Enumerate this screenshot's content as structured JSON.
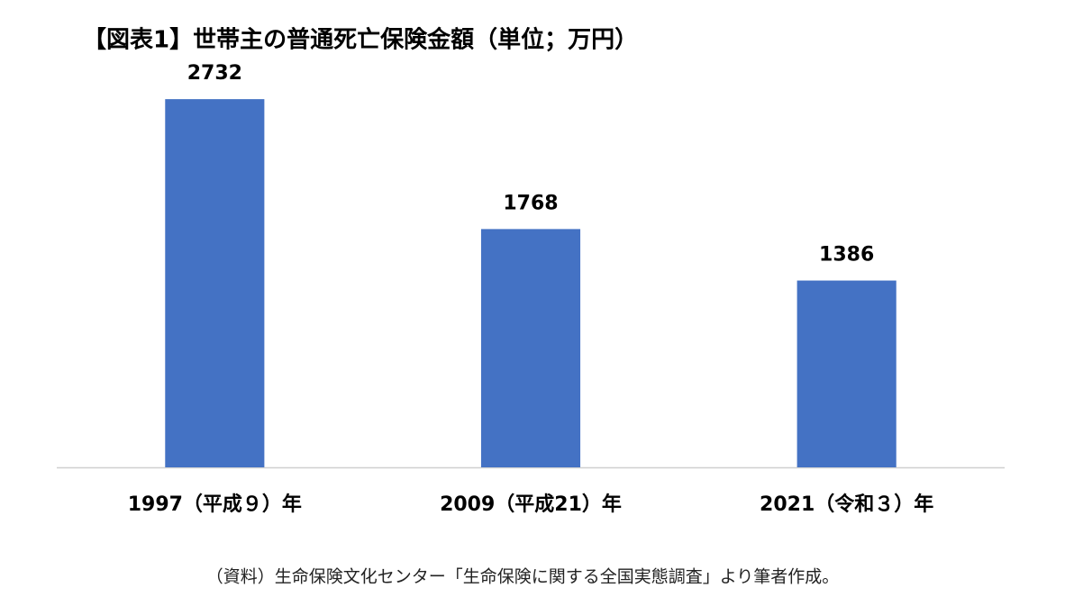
{
  "chart_data": {
    "type": "bar",
    "title": "【図表1】世帯主の普通死亡保険金額（単位；万円）",
    "categories": [
      "1997（平成９）年",
      "2009（平成21）年",
      "2021（令和３）年"
    ],
    "values": [
      2732,
      1768,
      1386
    ],
    "color": "#4472c4",
    "ylim": [
      0,
      3000
    ],
    "source": "（資料）生命保険文化センター「生命保険に関する全国実態調査」より筆者作成。"
  }
}
